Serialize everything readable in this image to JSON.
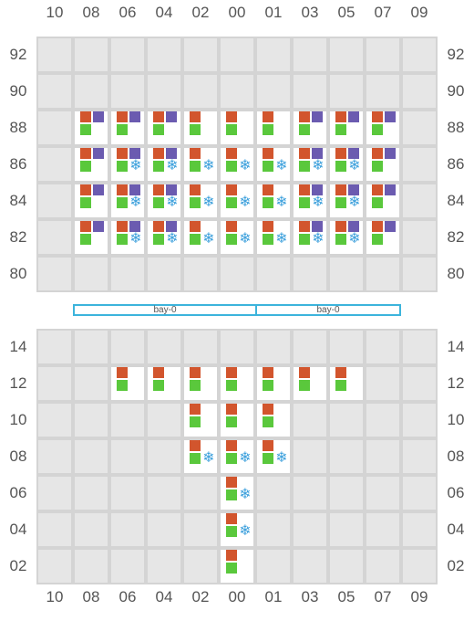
{
  "columns": [
    "10",
    "08",
    "06",
    "04",
    "02",
    "00",
    "01",
    "03",
    "05",
    "07",
    "09"
  ],
  "deck": {
    "rows": [
      "92",
      "90",
      "88",
      "86",
      "84",
      "82",
      "80"
    ],
    "slots": {
      "88": [
        "08",
        "06",
        "04",
        "02",
        "00",
        "01",
        "03",
        "05",
        "07"
      ],
      "86": [
        "08",
        "06",
        "04",
        "02",
        "00",
        "01",
        "03",
        "05",
        "07"
      ],
      "84": [
        "08",
        "06",
        "04",
        "02",
        "00",
        "01",
        "03",
        "05",
        "07"
      ],
      "82": [
        "08",
        "06",
        "04",
        "02",
        "00",
        "01",
        "03",
        "05",
        "07"
      ]
    },
    "purple": {
      "88": [
        "08",
        "06",
        "04",
        "03",
        "05",
        "07"
      ],
      "86": [
        "08",
        "06",
        "04",
        "03",
        "05",
        "07"
      ],
      "84": [
        "08",
        "06",
        "04",
        "03",
        "05",
        "07"
      ],
      "82": [
        "08",
        "06",
        "04",
        "03",
        "05",
        "07"
      ]
    },
    "reefer": {
      "86": [
        "06",
        "04",
        "02",
        "00",
        "01",
        "03",
        "05"
      ],
      "84": [
        "06",
        "04",
        "02",
        "00",
        "01",
        "03",
        "05"
      ],
      "82": [
        "06",
        "04",
        "02",
        "00",
        "01",
        "03",
        "05"
      ]
    }
  },
  "bays": [
    {
      "label": "bay-0",
      "side": "left"
    },
    {
      "label": "bay-0",
      "side": "right"
    }
  ],
  "hold": {
    "rows": [
      "14",
      "12",
      "10",
      "08",
      "06",
      "04",
      "02"
    ],
    "slots": {
      "12": [
        "06",
        "04",
        "02",
        "00",
        "01",
        "03",
        "05"
      ],
      "10": [
        "02",
        "00",
        "01"
      ],
      "08": [
        "02",
        "00",
        "01"
      ],
      "06": [
        "00"
      ],
      "04": [
        "00"
      ],
      "02": [
        "00"
      ]
    },
    "purple": {},
    "reefer": {
      "08": [
        "02",
        "00",
        "01"
      ],
      "06": [
        "00"
      ],
      "04": [
        "00"
      ]
    }
  },
  "legend_colors": {
    "red": "#d2552d",
    "purple": "#6b5bb0",
    "green": "#5ac83c",
    "reefer": "#3ca0dc",
    "empty_cell": "#e6e6e6",
    "slot_cell": "#ffffff",
    "grid_line": "#d4d4d4",
    "bay_outline": "#3cb4dc"
  },
  "icons": {
    "reefer": "snowflake-icon",
    "reefer_glyph": "❄"
  }
}
